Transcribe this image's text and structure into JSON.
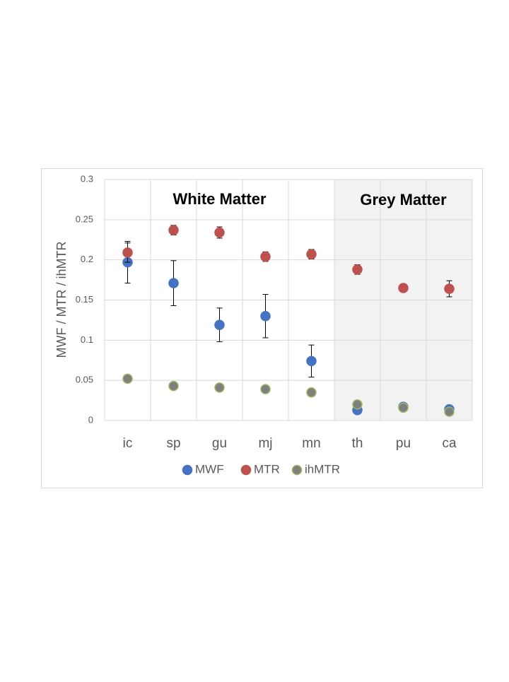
{
  "chart_data": {
    "type": "scatter",
    "y_label": "MWF / MTR / ihMTR",
    "annotations": [
      "White Matter",
      "Grey Matter"
    ],
    "categories": [
      "ic",
      "sp",
      "gu",
      "mj",
      "mn",
      "th",
      "pu",
      "ca"
    ],
    "series": [
      {
        "name": "MWF",
        "color": "#4472c4",
        "values": [
          0.197,
          0.171,
          0.119,
          0.13,
          0.074,
          0.013,
          0.017,
          0.014
        ],
        "errors": [
          0.026,
          0.028,
          0.021,
          0.027,
          0.02,
          null,
          null,
          null
        ]
      },
      {
        "name": "MTR",
        "color": "#c0504d",
        "values": [
          0.209,
          0.237,
          0.234,
          0.204,
          0.207,
          0.188,
          0.165,
          0.164
        ],
        "errors": [
          0.012,
          0.006,
          0.007,
          0.006,
          0.006,
          0.006,
          0.003,
          0.01
        ]
      },
      {
        "name": "ihMTR",
        "color": "#7f7f7f",
        "edge": "#9bbb59",
        "values": [
          0.052,
          0.043,
          0.041,
          0.039,
          0.035,
          0.02,
          0.016,
          0.011
        ],
        "errors": [
          null,
          null,
          null,
          null,
          null,
          null,
          null,
          null
        ]
      }
    ],
    "ylim": [
      0,
      0.3
    ],
    "yticks": [
      0,
      0.05,
      0.1,
      0.15,
      0.2,
      0.25,
      0.3
    ],
    "grid": true,
    "legend": "bottom"
  }
}
